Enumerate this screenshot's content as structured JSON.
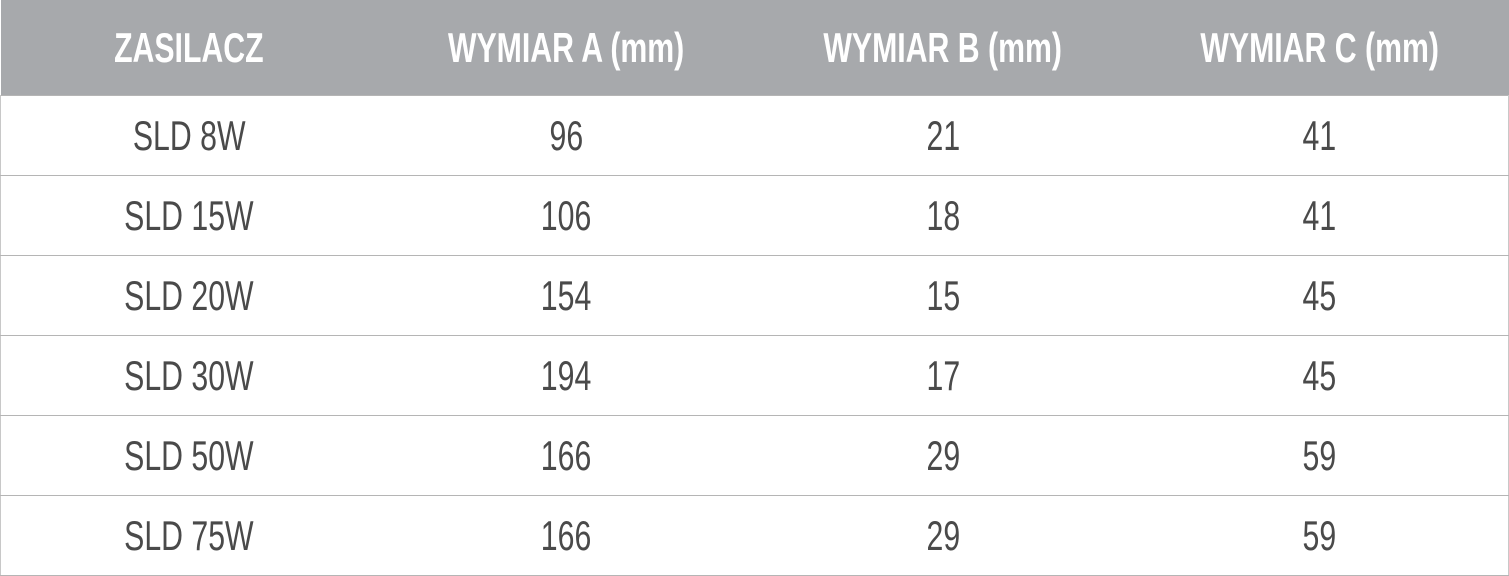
{
  "table": {
    "columns": [
      "ZASILACZ",
      "WYMIAR A (mm)",
      "WYMIAR B (mm)",
      "WYMIAR C (mm)"
    ],
    "rows": [
      [
        "SLD 8W",
        96,
        21,
        41
      ],
      [
        "SLD 15W",
        106,
        18,
        41
      ],
      [
        "SLD 20W",
        154,
        15,
        45
      ],
      [
        "SLD 30W",
        194,
        17,
        45
      ],
      [
        "SLD 50W",
        166,
        29,
        59
      ],
      [
        "SLD 75W",
        166,
        29,
        59
      ]
    ]
  }
}
